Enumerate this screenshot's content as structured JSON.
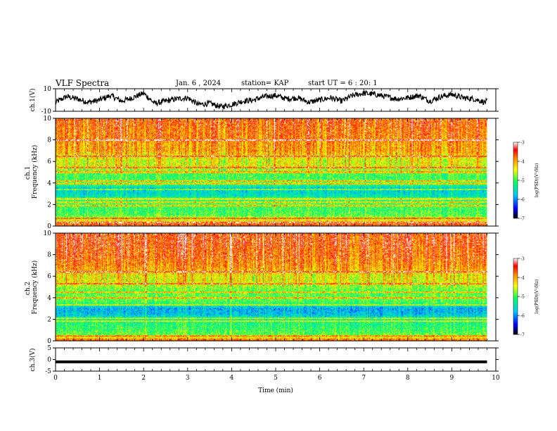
{
  "header": {
    "title": "VLF Spectra",
    "date": "Jan. 6 , 2024",
    "station": "station= KAP",
    "start_ut": "start UT = 6 : 20: 1"
  },
  "colors": {
    "spectrogram_stops": [
      "#000000",
      "#0000ff",
      "#00c8ff",
      "#00ff64",
      "#ffff00",
      "#ff9000",
      "#ff0000",
      "#ffffff"
    ]
  },
  "chart_data": [
    {
      "type": "line",
      "id": "ch1-waveform",
      "ylabel": "ch.1(V)",
      "ylim": [
        -10,
        10
      ],
      "yticks": [
        -10,
        10
      ],
      "xlim": [
        0,
        10
      ],
      "series": [
        {
          "x": [
            0,
            0.25,
            0.5,
            0.75,
            1,
            1.25,
            1.5,
            1.75,
            2,
            2.25,
            2.5,
            2.75,
            3,
            3.25,
            3.5,
            3.75,
            4,
            4.25,
            4.5,
            4.75,
            5,
            5.25,
            5.5,
            5.75,
            6,
            6.25,
            6.5,
            6.75,
            7,
            7.25,
            7.5,
            7.75,
            8,
            8.25,
            8.5,
            8.75,
            9,
            9.25,
            9.5,
            9.75,
            9.8
          ],
          "y": [
            -2,
            3,
            1,
            -2,
            0,
            4,
            -1,
            2,
            6,
            -3,
            -1,
            1,
            2,
            -4,
            -3,
            -6,
            -4,
            -1,
            0,
            3,
            4,
            1,
            2,
            -2,
            0,
            2,
            -1,
            4,
            6,
            5,
            3,
            1,
            2,
            4,
            -1,
            3,
            5,
            2,
            1,
            -2,
            -1
          ]
        }
      ]
    },
    {
      "type": "heatmap",
      "id": "ch1-spectrogram",
      "ylabel": "ch.1\nFrequency (kHz)",
      "ylim": [
        0,
        10
      ],
      "yticks": [
        0,
        2,
        4,
        6,
        8,
        10
      ],
      "xlim": [
        0,
        10
      ],
      "data_xmax": 9.8,
      "colorbar": {
        "label": "log(PSD)(V²/Hz)",
        "range": [
          -7,
          -3
        ],
        "ticks": [
          -7,
          -6,
          -5,
          -4,
          -3
        ]
      },
      "profile_freq_khz": [
        0,
        0.5,
        1,
        1.5,
        2,
        2.5,
        3,
        3.5,
        4,
        4.5,
        5,
        5.5,
        6,
        6.5,
        7,
        7.5,
        8,
        8.5,
        9,
        9.5,
        10
      ],
      "profile_log_psd": [
        -3.6,
        -4.4,
        -5.0,
        -5.1,
        -5.0,
        -5.3,
        -5.6,
        -5.7,
        -4.9,
        -5.1,
        -5.0,
        -4.5,
        -4.6,
        -4.4,
        -4.1,
        -4.1,
        -4.0,
        -3.9,
        -3.9,
        -3.8,
        -3.8
      ],
      "tone_lines_khz": [
        0.3,
        0.7,
        1.9,
        2.2,
        2.5,
        3.4,
        3.9,
        4.2,
        5.0,
        5.4,
        6.5,
        8.0
      ]
    },
    {
      "type": "heatmap",
      "id": "ch2-spectrogram",
      "ylabel": "ch.2\nFrequency (kHz)",
      "ylim": [
        0,
        10
      ],
      "yticks": [
        0,
        2,
        4,
        6,
        8,
        10
      ],
      "xlim": [
        0,
        10
      ],
      "data_xmax": 9.8,
      "colorbar": {
        "label": "log(PSD)(V²/Hz)",
        "range": [
          -7,
          -3
        ],
        "ticks": [
          -7,
          -6,
          -5,
          -4,
          -3
        ]
      },
      "profile_freq_khz": [
        0,
        0.5,
        1,
        1.5,
        2,
        2.5,
        3,
        3.5,
        4,
        4.5,
        5,
        5.5,
        6,
        6.5,
        7,
        7.5,
        8,
        8.5,
        9,
        9.5,
        10
      ],
      "profile_log_psd": [
        -3.7,
        -4.9,
        -5.1,
        -5.2,
        -5.4,
        -5.8,
        -5.9,
        -5.1,
        -4.9,
        -5.0,
        -4.8,
        -4.5,
        -4.5,
        -4.2,
        -4.0,
        -3.9,
        -3.8,
        -3.8,
        -3.7,
        -3.7,
        -3.7
      ],
      "tone_lines_khz": [
        0.4,
        1.8,
        2.1,
        3.3,
        4.0,
        4.5,
        5.3,
        6.4
      ]
    },
    {
      "type": "line",
      "id": "ch3-waveform",
      "ylabel": "ch.3(V)",
      "ylim": [
        -5,
        5
      ],
      "yticks": [
        -5,
        0,
        5
      ],
      "xlim": [
        0,
        10
      ],
      "xticks": [
        0,
        1,
        2,
        3,
        4,
        5,
        6,
        7,
        8,
        9,
        10
      ],
      "xlabel": "Time (min)",
      "band": {
        "x": [
          0,
          9.8
        ],
        "ylow": -1.6,
        "yhigh": -0.4
      }
    }
  ]
}
